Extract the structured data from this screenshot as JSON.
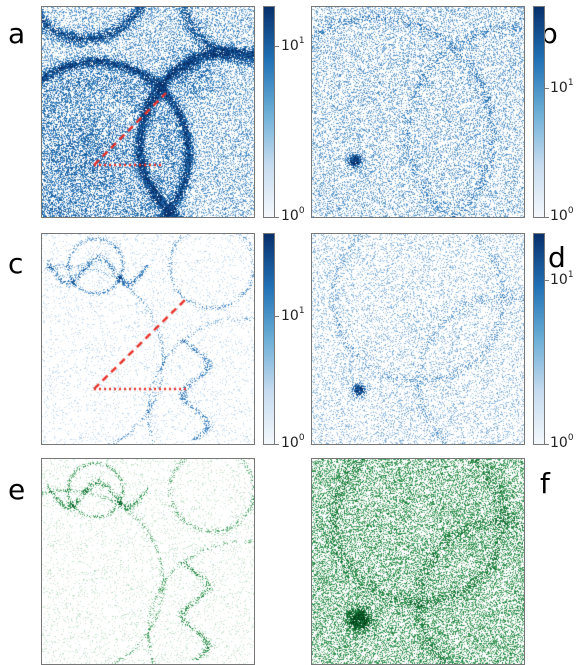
{
  "panels": [
    {
      "label": "a",
      "cmap": "blues",
      "pattern": "rings-wedge"
    },
    {
      "label": "b",
      "cmap": "blues",
      "pattern": "noise-rings-point"
    },
    {
      "label": "c",
      "cmap": "blues",
      "pattern": "caustics-wedge"
    },
    {
      "label": "d",
      "cmap": "blues",
      "pattern": "noise-web-star"
    },
    {
      "label": "e",
      "cmap": "greens",
      "pattern": "caustics"
    },
    {
      "label": "f",
      "cmap": "greens",
      "pattern": "noise-web-dense"
    }
  ],
  "colorbars": [
    {
      "ticks": [
        {
          "base": "10",
          "exp": "1"
        },
        {
          "base": "10",
          "exp": "0"
        }
      ]
    },
    {
      "ticks": [
        {
          "base": "10",
          "exp": "1"
        },
        {
          "base": "10",
          "exp": "0"
        }
      ]
    },
    {
      "ticks": [
        {
          "base": "10",
          "exp": "1"
        },
        {
          "base": "10",
          "exp": "0"
        }
      ]
    },
    {
      "ticks": [
        {
          "base": "10",
          "exp": "1"
        },
        {
          "base": "10",
          "exp": "0"
        }
      ]
    }
  ],
  "colors": {
    "blue_dark": "#08306b",
    "blue_mid": "#2171b5",
    "green_dark": "#00441b",
    "green_mid": "#238b45",
    "wedge": "#e8322a"
  },
  "chart_data": {
    "type": "heatmap",
    "scale": "log",
    "colorbar_range": [
      1,
      10
    ],
    "panels": [
      "a",
      "b",
      "c",
      "d",
      "e",
      "f"
    ]
  }
}
